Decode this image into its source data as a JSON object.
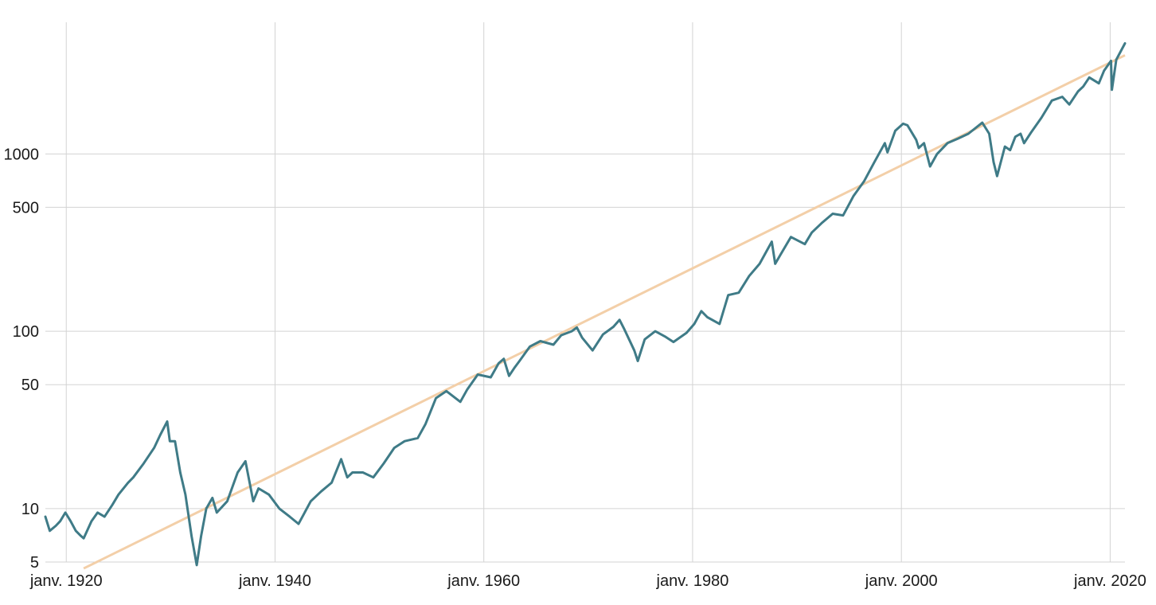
{
  "chart_data": {
    "type": "line",
    "title": "",
    "xlabel": "",
    "ylabel": "",
    "y_scale": "log",
    "ylim": [
      5,
      6000
    ],
    "xlim": [
      "1918-01",
      "2021-06"
    ],
    "grid": true,
    "y_ticks": [
      5,
      10,
      50,
      100,
      500,
      1000
    ],
    "y_tick_labels": [
      "5",
      "10",
      "50",
      "100",
      "500",
      "1000"
    ],
    "x_ticks": [
      "1920-01",
      "1940-01",
      "1960-01",
      "1980-01",
      "2000-01",
      "2020-01"
    ],
    "x_tick_labels": [
      "janv. 1920",
      "janv. 1940",
      "janv. 1960",
      "janv. 1980",
      "janv. 2000",
      "janv. 2020"
    ],
    "colors": {
      "series": "#3f7b87",
      "trend": "#f3cfa8",
      "grid": "#d3d3d3"
    },
    "series": [
      {
        "x": [
          "1918-01",
          "1918-06",
          "1919-01",
          "1919-06",
          "1919-12",
          "1920-06",
          "1920-12",
          "1921-06",
          "1921-09",
          "1922-06",
          "1923-01",
          "1923-09",
          "1924-06",
          "1925-01",
          "1925-12",
          "1926-06",
          "1927-06",
          "1928-06",
          "1929-01",
          "1929-09",
          "1929-12",
          "1930-06",
          "1930-12",
          "1931-06",
          "1932-01",
          "1932-07",
          "1932-12",
          "1933-06",
          "1934-01",
          "1934-06",
          "1935-06",
          "1936-06",
          "1937-03",
          "1937-12",
          "1938-06",
          "1939-06",
          "1940-06",
          "1941-06",
          "1942-04",
          "1943-06",
          "1944-06",
          "1945-06",
          "1946-05",
          "1946-12",
          "1947-06",
          "1948-06",
          "1949-06",
          "1950-06",
          "1951-06",
          "1952-06",
          "1953-09",
          "1954-06",
          "1955-06",
          "1956-06",
          "1957-10",
          "1958-06",
          "1959-06",
          "1960-09",
          "1961-06",
          "1961-12",
          "1962-06",
          "1962-12",
          "1963-06",
          "1964-06",
          "1965-06",
          "1966-09",
          "1967-06",
          "1968-06",
          "1968-12",
          "1969-06",
          "1970-06",
          "1971-06",
          "1972-06",
          "1973-01",
          "1973-06",
          "1974-06",
          "1974-10",
          "1975-06",
          "1976-06",
          "1977-06",
          "1978-03",
          "1979-06",
          "1980-03",
          "1980-11",
          "1981-06",
          "1982-08",
          "1983-06",
          "1984-06",
          "1985-06",
          "1986-06",
          "1987-08",
          "1987-12",
          "1988-06",
          "1989-06",
          "1990-10",
          "1991-06",
          "1992-06",
          "1993-06",
          "1994-06",
          "1995-06",
          "1996-06",
          "1997-06",
          "1998-06",
          "1998-09",
          "1999-06",
          "2000-03",
          "2000-08",
          "2001-06",
          "2001-09",
          "2002-03",
          "2002-10",
          "2003-06",
          "2004-06",
          "2005-06",
          "2006-06",
          "2007-10",
          "2008-06",
          "2008-11",
          "2009-03",
          "2009-12",
          "2010-06",
          "2010-12",
          "2011-06",
          "2011-10",
          "2012-06",
          "2013-06",
          "2014-06",
          "2015-06",
          "2016-02",
          "2016-12",
          "2017-06",
          "2018-01",
          "2018-12",
          "2019-06",
          "2020-02",
          "2020-03",
          "2020-08",
          "2021-06"
        ],
        "values": [
          9,
          7.5,
          8,
          8.5,
          9.5,
          8.5,
          7.5,
          7,
          6.8,
          8.5,
          9.5,
          9,
          10.5,
          12,
          14,
          15,
          18,
          22,
          26,
          31,
          24,
          24,
          16,
          12,
          7,
          4.8,
          7,
          10,
          11.5,
          9.5,
          11,
          16,
          18.5,
          11,
          13,
          12,
          10,
          9,
          8.2,
          11,
          12.5,
          14,
          19,
          15,
          16,
          16,
          15,
          18,
          22,
          24,
          25,
          30,
          42,
          46,
          40,
          47,
          57,
          55,
          66,
          70,
          56,
          62,
          68,
          82,
          88,
          84,
          95,
          100,
          105,
          92,
          78,
          96,
          106,
          116,
          104,
          78,
          68,
          90,
          100,
          93,
          87,
          98,
          110,
          130,
          120,
          110,
          160,
          165,
          205,
          240,
          320,
          240,
          270,
          340,
          310,
          360,
          410,
          460,
          450,
          580,
          700,
          900,
          1150,
          1020,
          1350,
          1480,
          1450,
          1200,
          1080,
          1150,
          850,
          1000,
          1150,
          1220,
          1300,
          1500,
          1300,
          900,
          750,
          1100,
          1050,
          1250,
          1300,
          1150,
          1320,
          1600,
          2000,
          2100,
          1900,
          2250,
          2400,
          2700,
          2500,
          2950,
          3350,
          2300,
          3400,
          4200
        ]
      }
    ],
    "trend": {
      "x": [
        "1921-09",
        "2021-06"
      ],
      "values": [
        4.6,
        3600
      ]
    }
  }
}
